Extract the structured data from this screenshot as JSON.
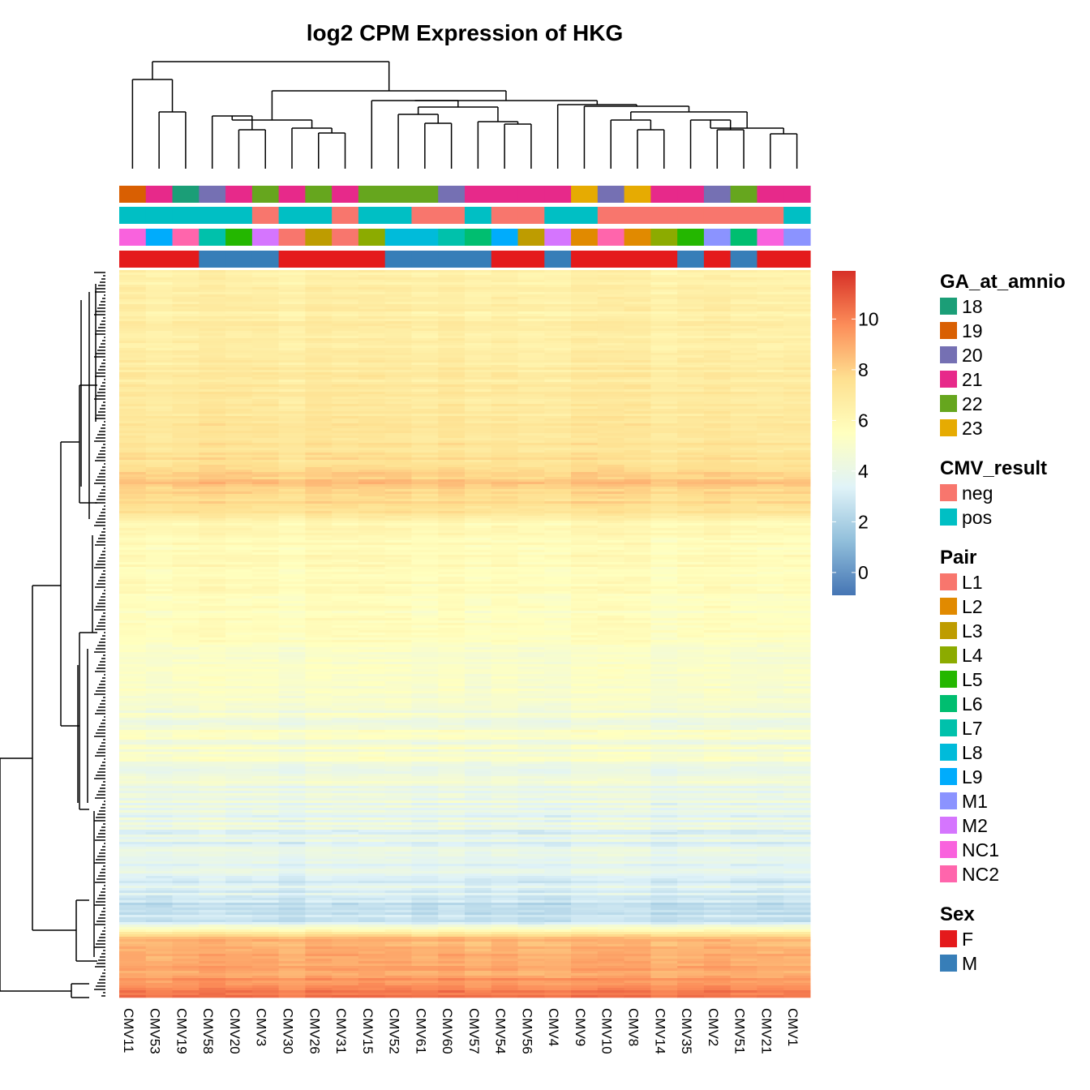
{
  "chart_data": {
    "type": "heatmap",
    "title": "log2 CPM Expression of HKG",
    "samples": [
      "CMV11",
      "CMV53",
      "CMV19",
      "CMV58",
      "CMV20",
      "CMV3",
      "CMV30",
      "CMV26",
      "CMV31",
      "CMV15",
      "CMV52",
      "CMV61",
      "CMV60",
      "CMV57",
      "CMV54",
      "CMV56",
      "CMV4",
      "CMV9",
      "CMV10",
      "CMV8",
      "CMV14",
      "CMV35",
      "CMV2",
      "CMV51",
      "CMV21",
      "CMV1"
    ],
    "annotations": {
      "GA_at_amnio": [
        "19",
        "21",
        "18",
        "20",
        "21",
        "22",
        "21",
        "22",
        "21",
        "22",
        "22",
        "22",
        "20",
        "21",
        "21",
        "21",
        "21",
        "23",
        "20",
        "23",
        "21",
        "21",
        "20",
        "22",
        "21",
        "21"
      ],
      "CMV_result": [
        "pos",
        "pos",
        "pos",
        "pos",
        "pos",
        "neg",
        "pos",
        "pos",
        "neg",
        "pos",
        "pos",
        "neg",
        "neg",
        "pos",
        "neg",
        "neg",
        "pos",
        "pos",
        "neg",
        "neg",
        "neg",
        "neg",
        "neg",
        "neg",
        "neg",
        "pos"
      ],
      "Pair": [
        "NC1",
        "L9",
        "NC2",
        "L7",
        "L5",
        "M2",
        "L1",
        "L3",
        "L1",
        "L4",
        "L8",
        "L8",
        "L7",
        "L6",
        "L9",
        "L3",
        "M2",
        "L2",
        "NC2",
        "L2",
        "L4",
        "L5",
        "M1",
        "L6",
        "NC1",
        "M1"
      ],
      "Sex": [
        "F",
        "F",
        "F",
        "M",
        "M",
        "M",
        "F",
        "F",
        "F",
        "F",
        "M",
        "M",
        "M",
        "M",
        "F",
        "F",
        "M",
        "F",
        "F",
        "F",
        "F",
        "M",
        "F",
        "M",
        "F",
        "F"
      ]
    },
    "annotation_order": [
      "GA_at_amnio",
      "CMV_result",
      "Pair",
      "Sex"
    ],
    "legends": [
      {
        "title": "GA_at_amnio",
        "items": [
          {
            "label": "18",
            "color": "#1B9E77"
          },
          {
            "label": "19",
            "color": "#D95F02"
          },
          {
            "label": "20",
            "color": "#7570B3"
          },
          {
            "label": "21",
            "color": "#E7298A"
          },
          {
            "label": "22",
            "color": "#66A61E"
          },
          {
            "label": "23",
            "color": "#E6AB02"
          }
        ]
      },
      {
        "title": "CMV_result",
        "items": [
          {
            "label": "neg",
            "color": "#F8766D"
          },
          {
            "label": "pos",
            "color": "#00BFC4"
          }
        ]
      },
      {
        "title": "Pair",
        "items": [
          {
            "label": "L1",
            "color": "#F8766D"
          },
          {
            "label": "L2",
            "color": "#E18A00"
          },
          {
            "label": "L3",
            "color": "#BE9C00"
          },
          {
            "label": "L4",
            "color": "#8CAB00"
          },
          {
            "label": "L5",
            "color": "#24B700"
          },
          {
            "label": "L6",
            "color": "#00BE70"
          },
          {
            "label": "L7",
            "color": "#00C1AB"
          },
          {
            "label": "L8",
            "color": "#00BBDA"
          },
          {
            "label": "L9",
            "color": "#00ACFC"
          },
          {
            "label": "M1",
            "color": "#8B93FF"
          },
          {
            "label": "M2",
            "color": "#D575FE"
          },
          {
            "label": "NC1",
            "color": "#F962DD"
          },
          {
            "label": "NC2",
            "color": "#FF65AC"
          }
        ]
      },
      {
        "title": "Sex",
        "items": [
          {
            "label": "F",
            "color": "#E41A1C"
          },
          {
            "label": "M",
            "color": "#377EB8"
          }
        ]
      }
    ],
    "colorbar": {
      "range": [
        -0.9,
        11.9
      ],
      "ticks": [
        0,
        2,
        4,
        6,
        8,
        10
      ],
      "colors": [
        "#4575B4",
        "#91BFDB",
        "#E0F3F8",
        "#FFFFBF",
        "#FEE090",
        "#FC8D59",
        "#D73027"
      ]
    },
    "row_profile": [
      {
        "pos": 0.0,
        "value": 6.4
      },
      {
        "pos": 0.08,
        "value": 6.6
      },
      {
        "pos": 0.18,
        "value": 7.0
      },
      {
        "pos": 0.26,
        "value": 7.4
      },
      {
        "pos": 0.29,
        "value": 8.3
      },
      {
        "pos": 0.33,
        "value": 7.4
      },
      {
        "pos": 0.345,
        "value": 5.9
      },
      {
        "pos": 0.5,
        "value": 5.4
      },
      {
        "pos": 0.6,
        "value": 4.9
      },
      {
        "pos": 0.7,
        "value": 4.4
      },
      {
        "pos": 0.77,
        "value": 3.7
      },
      {
        "pos": 0.85,
        "value": 3.2
      },
      {
        "pos": 0.895,
        "value": 2.4
      },
      {
        "pos": 0.92,
        "value": 8.7
      },
      {
        "pos": 0.97,
        "value": 9.2
      },
      {
        "pos": 1.0,
        "value": 10.2
      }
    ]
  }
}
